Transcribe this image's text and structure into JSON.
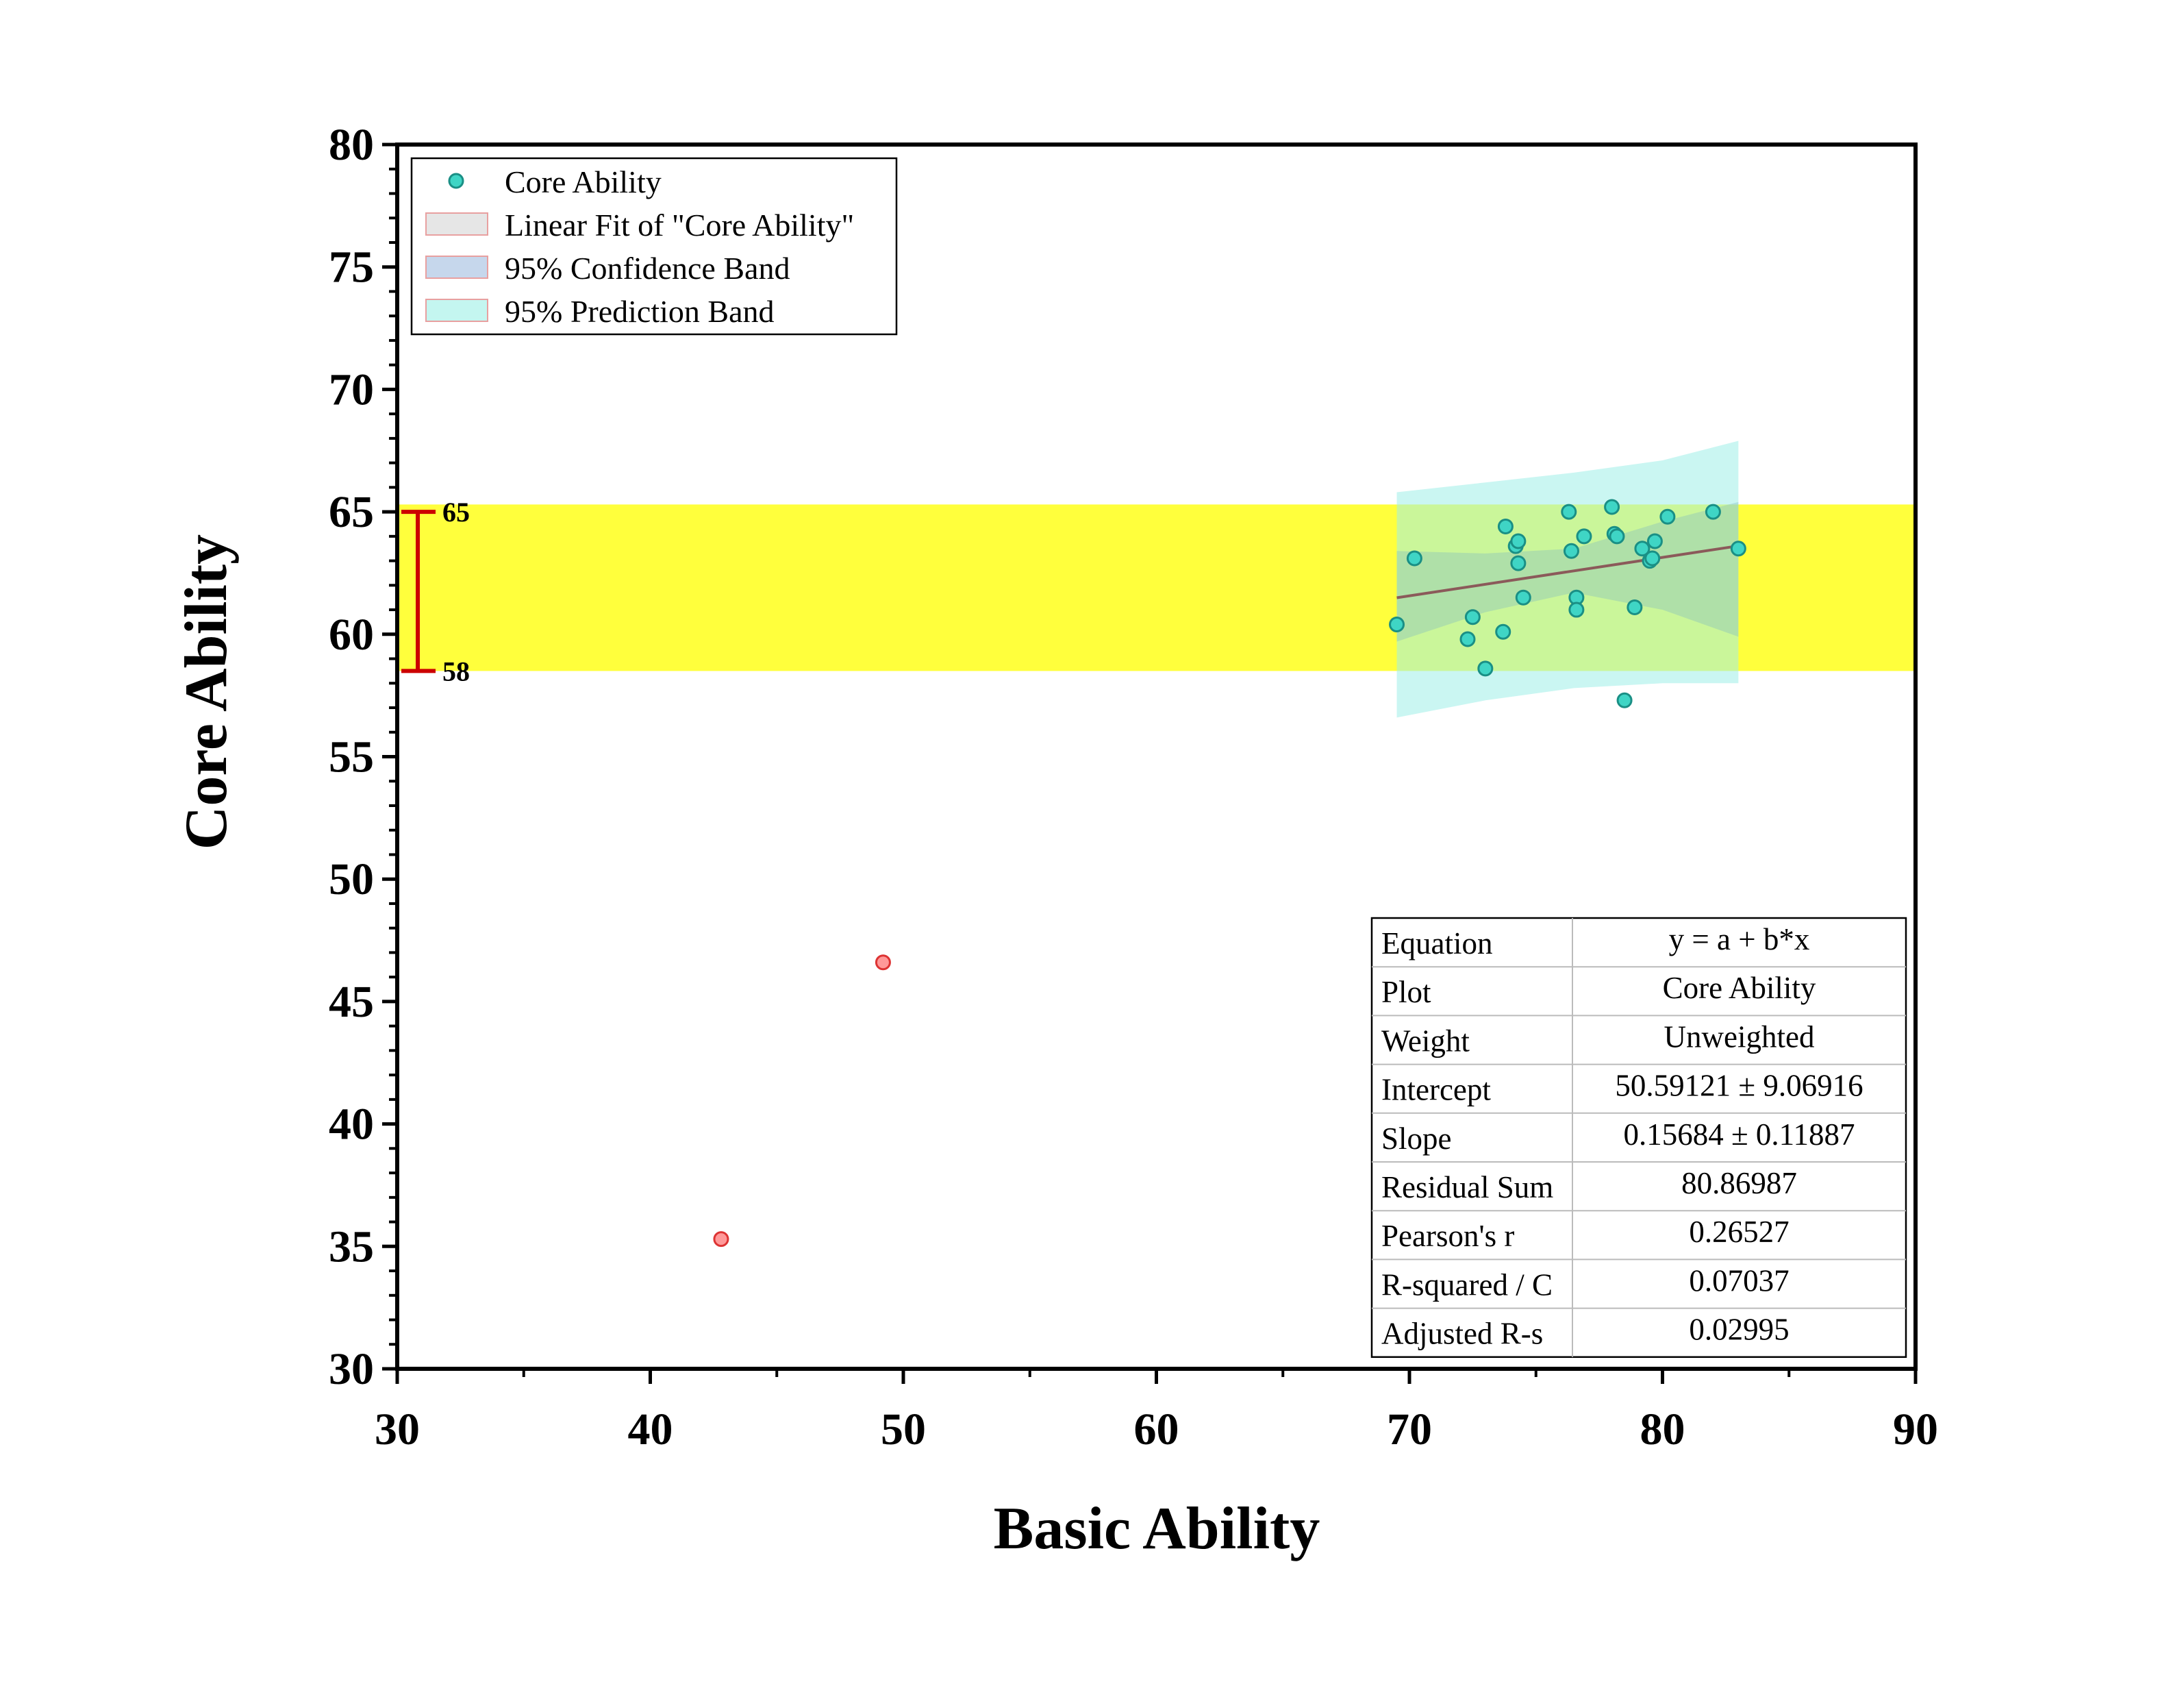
{
  "chart_data": {
    "type": "scatter",
    "xlabel": "Basic Ability",
    "ylabel": "Core Ability",
    "xlim": [
      30,
      90
    ],
    "ylim": [
      30,
      80
    ],
    "x_ticks": [
      "30",
      "40",
      "50",
      "60",
      "70",
      "80",
      "90"
    ],
    "y_ticks": [
      "30",
      "35",
      "40",
      "45",
      "50",
      "55",
      "60",
      "65",
      "70",
      "75",
      "80"
    ],
    "grid": false,
    "legend_position": "top-left",
    "highlight_band": {
      "ymin": 58.5,
      "ymax": 65.3,
      "color": "#ffff3c"
    },
    "bracket": {
      "top": 65,
      "bottom": 58.5,
      "top_label": "65",
      "bottom_label": "58",
      "color": "#cc0000"
    },
    "legend": [
      {
        "label": "Core Ability",
        "kind": "marker",
        "color": "#3fd5c5"
      },
      {
        "label": "Linear Fit of \"Core Ability\"",
        "kind": "swatch",
        "color": "#e6e6e6"
      },
      {
        "label": "95% Confidence Band",
        "kind": "swatch",
        "color": "#c6d7ec"
      },
      {
        "label": "95% Prediction Band",
        "kind": "swatch",
        "color": "#c4f6f0"
      }
    ],
    "series": [
      {
        "name": "Core Ability",
        "color": "#3fd5c5",
        "edge": "#1a8f85",
        "points": [
          [
            69.5,
            60.4
          ],
          [
            70.2,
            63.1
          ],
          [
            72.3,
            59.8
          ],
          [
            72.5,
            60.7
          ],
          [
            73.0,
            58.6
          ],
          [
            73.7,
            60.1
          ],
          [
            73.8,
            64.4
          ],
          [
            74.2,
            63.6
          ],
          [
            74.3,
            63.8
          ],
          [
            74.3,
            62.9
          ],
          [
            74.5,
            61.5
          ],
          [
            76.3,
            65.0
          ],
          [
            76.4,
            63.4
          ],
          [
            76.6,
            61.5
          ],
          [
            76.6,
            61.0
          ],
          [
            76.9,
            64.0
          ],
          [
            78.0,
            65.2
          ],
          [
            78.1,
            64.1
          ],
          [
            78.2,
            64.0
          ],
          [
            78.5,
            57.3
          ],
          [
            78.9,
            61.1
          ],
          [
            79.2,
            63.5
          ],
          [
            79.5,
            63.0
          ],
          [
            79.6,
            63.1
          ],
          [
            79.7,
            63.8
          ],
          [
            80.2,
            64.8
          ],
          [
            82.0,
            65.0
          ],
          [
            83.0,
            63.5
          ]
        ]
      },
      {
        "name": "",
        "color": "#ff9999",
        "edge": "#dd3333",
        "points": [
          [
            42.8,
            35.3
          ],
          [
            49.2,
            46.6
          ]
        ]
      }
    ],
    "fit": {
      "x_range": [
        69.5,
        83.0
      ],
      "intercept": 50.59121,
      "slope": 0.15684,
      "line_color": "#8b5a5a",
      "confidence_band": {
        "x": [
          69.5,
          73.0,
          76.5,
          80.0,
          83.0
        ],
        "lower": [
          59.7,
          60.9,
          61.7,
          61.0,
          59.9
        ],
        "upper": [
          63.4,
          63.3,
          63.5,
          64.6,
          65.4
        ]
      },
      "prediction_band": {
        "x": [
          69.5,
          73.0,
          76.5,
          80.0,
          83.0
        ],
        "lower": [
          56.6,
          57.3,
          57.8,
          58.0,
          58.0
        ],
        "upper": [
          65.8,
          66.2,
          66.6,
          67.1,
          67.9
        ]
      }
    },
    "stats_table": [
      [
        "Equation",
        "y = a + b*x"
      ],
      [
        "Plot",
        "Core Ability"
      ],
      [
        "Weight",
        "Unweighted"
      ],
      [
        "Intercept",
        "50.59121 ± 9.06916"
      ],
      [
        "Slope",
        "0.15684 ± 0.11887"
      ],
      [
        "Residual Sum",
        "80.86987"
      ],
      [
        "Pearson's r",
        "0.26527"
      ],
      [
        "R-squared / C",
        "0.07037"
      ],
      [
        "Adjusted R-s",
        "0.02995"
      ]
    ]
  }
}
